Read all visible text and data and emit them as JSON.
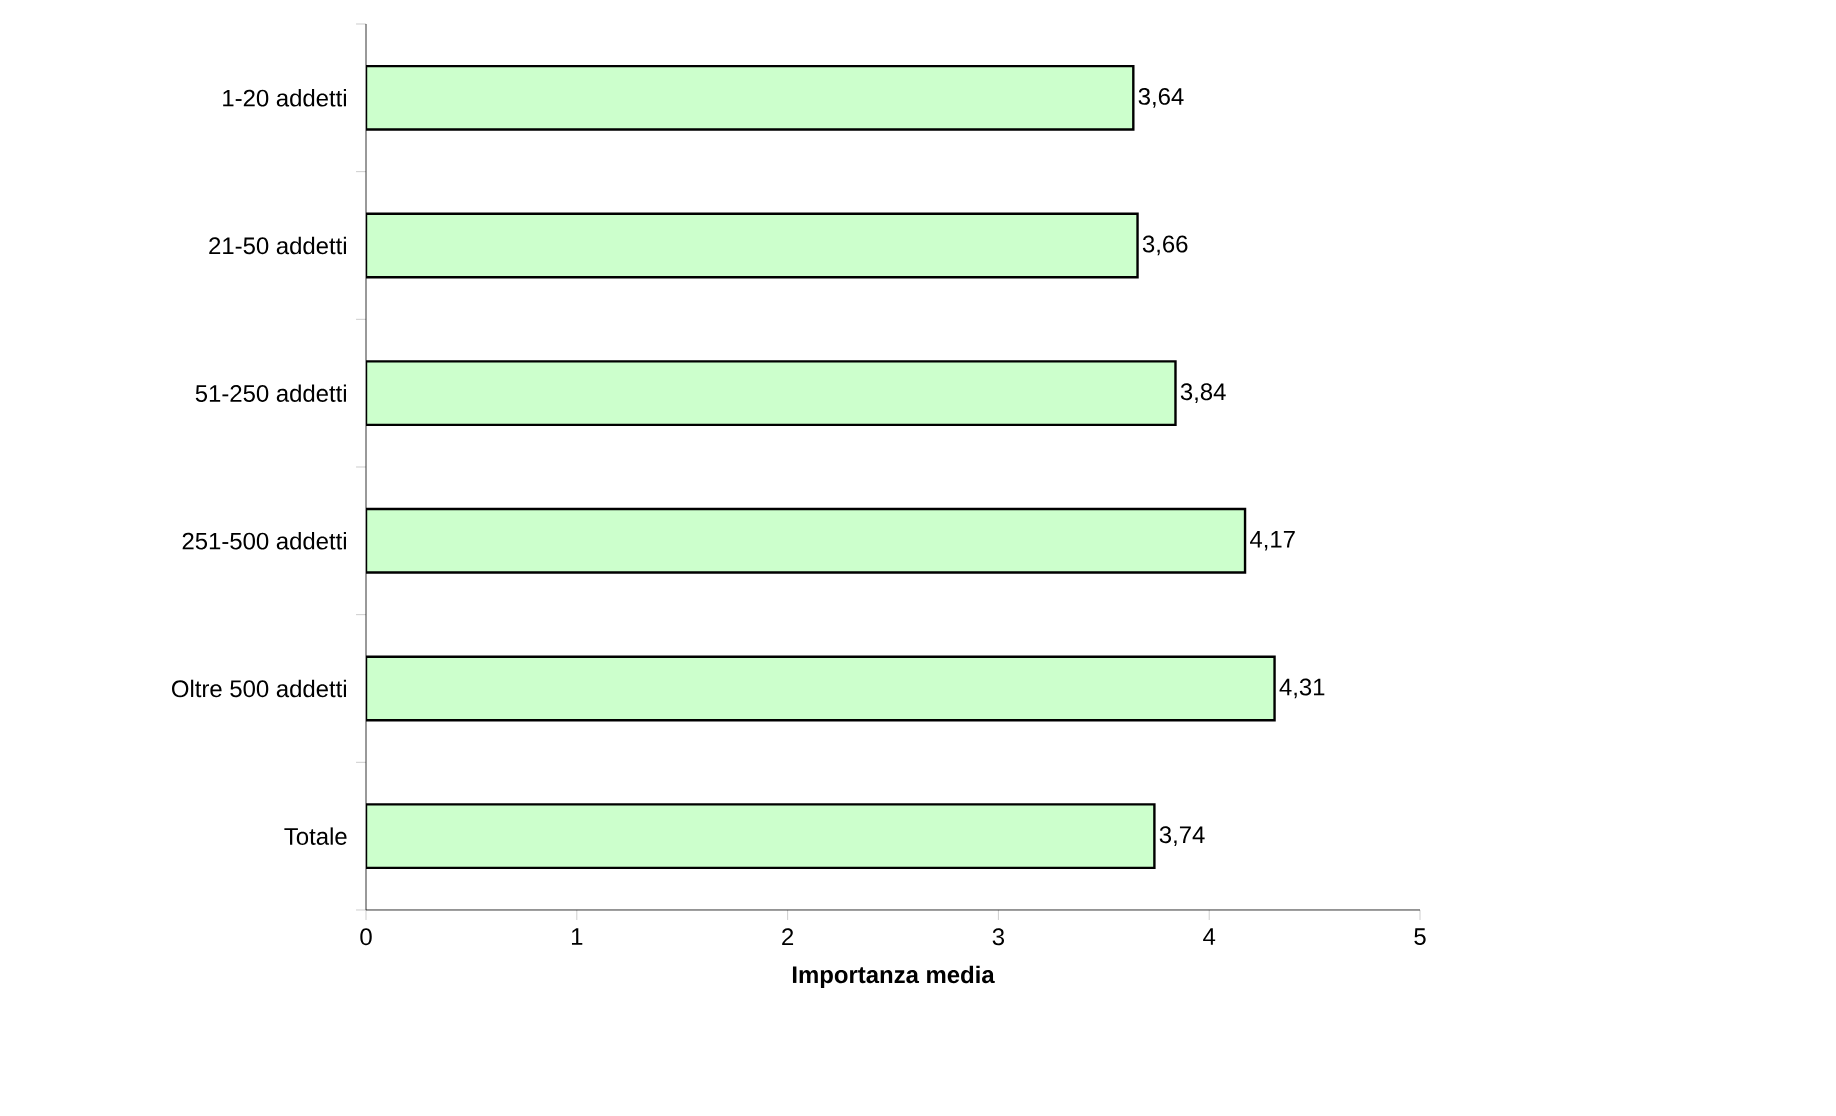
{
  "chart_data": {
    "type": "bar",
    "orientation": "horizontal",
    "xlabel": "Importanza media",
    "categories": [
      "1-20 addetti",
      "21-50 addetti",
      "51-250 addetti",
      "251-500 addetti",
      "Oltre 500 addetti",
      "Totale"
    ],
    "values": [
      3.64,
      3.66,
      3.84,
      4.17,
      4.31,
      3.74
    ],
    "value_labels": [
      "3,64",
      "3,66",
      "3,84",
      "4,17",
      "4,31",
      "3,74"
    ],
    "color": "#ccffcc",
    "xlim": [
      0,
      5
    ],
    "xticks": [
      0,
      1,
      2,
      3,
      4,
      5
    ]
  }
}
